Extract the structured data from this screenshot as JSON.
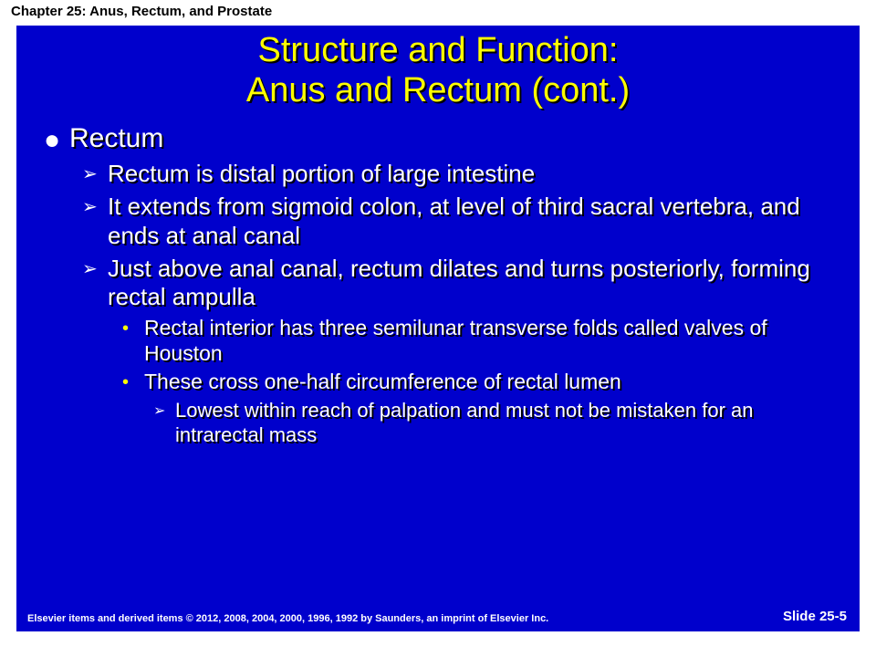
{
  "chapter_header": "Chapter 25: Anus, Rectum, and Prostate",
  "title_line1": "Structure and Function:",
  "title_line2": "Anus and Rectum (cont.)",
  "bullets": {
    "l1": "Rectum",
    "l2a": "Rectum is distal portion of large intestine",
    "l2b": "It extends from sigmoid colon, at level of third sacral vertebra, and ends at anal canal",
    "l2c": "Just above anal canal, rectum dilates and turns posteriorly, forming rectal ampulla",
    "l3a": "Rectal interior has three semilunar transverse folds called valves of Houston",
    "l3b": "These cross one-half circumference of rectal lumen",
    "l4a": "Lowest within reach of palpation and must not be mistaken for an intrarectal mass"
  },
  "footer_left": "Elsevier items and derived items © 2012, 2008, 2004, 2000, 1996, 1992 by Saunders, an imprint of Elsevier Inc.",
  "footer_right": "Slide 25-5",
  "glyphs": {
    "disc": "●",
    "tri": "➢",
    "dot": "•"
  },
  "colors": {
    "slide_bg": "#0000cc",
    "title_color": "#ffff00",
    "text_color": "#ffffff",
    "l3_bullet": "#ffff00",
    "page_bg": "#ffffff"
  }
}
